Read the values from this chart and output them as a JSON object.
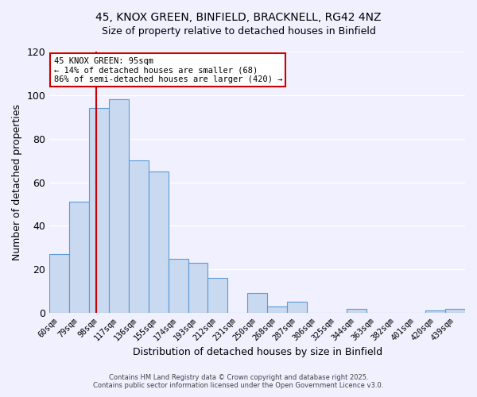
{
  "title_line1": "45, KNOX GREEN, BINFIELD, BRACKNELL, RG42 4NZ",
  "title_line2": "Size of property relative to detached houses in Binfield",
  "xlabel": "Distribution of detached houses by size in Binfield",
  "ylabel": "Number of detached properties",
  "categories": [
    "60sqm",
    "79sqm",
    "98sqm",
    "117sqm",
    "136sqm",
    "155sqm",
    "174sqm",
    "193sqm",
    "212sqm",
    "231sqm",
    "250sqm",
    "268sqm",
    "287sqm",
    "306sqm",
    "325sqm",
    "344sqm",
    "363sqm",
    "382sqm",
    "401sqm",
    "420sqm",
    "439sqm"
  ],
  "values": [
    27,
    51,
    94,
    98,
    70,
    65,
    25,
    23,
    16,
    0,
    9,
    3,
    5,
    0,
    0,
    2,
    0,
    0,
    0,
    1,
    2
  ],
  "bar_color": "#c9d9f0",
  "bar_edge_color": "#5b9bd5",
  "ylim": [
    0,
    120
  ],
  "yticks": [
    0,
    20,
    40,
    60,
    80,
    100,
    120
  ],
  "marker_label_line1": "45 KNOX GREEN: 95sqm",
  "marker_label_line2": "← 14% of detached houses are smaller (68)",
  "marker_label_line3": "86% of semi-detached houses are larger (420) →",
  "annotation_box_color": "#ffffff",
  "annotation_box_edge": "#cc0000",
  "marker_line_color": "#cc0000",
  "background_color": "#f0f0ff",
  "grid_color": "#ffffff",
  "footer_line1": "Contains HM Land Registry data © Crown copyright and database right 2025.",
  "footer_line2": "Contains public sector information licensed under the Open Government Licence v3.0."
}
